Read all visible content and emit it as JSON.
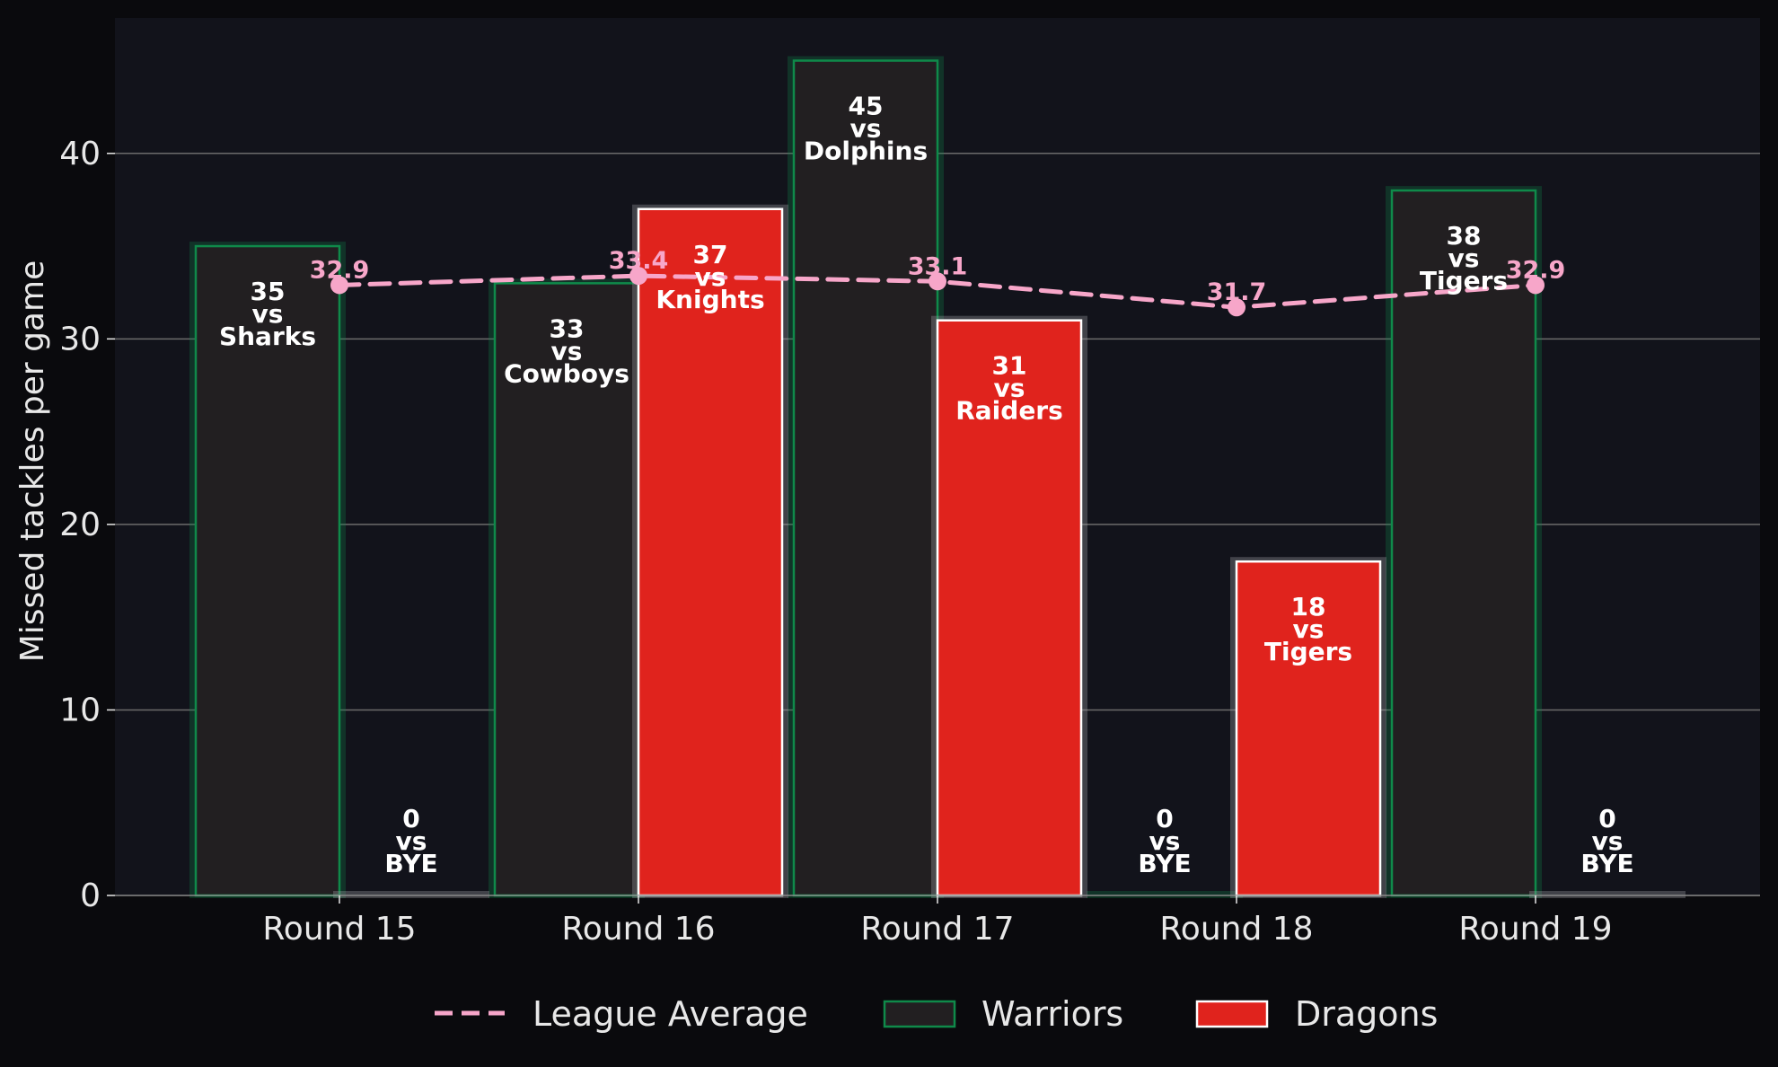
{
  "chart_data": {
    "type": "bar",
    "title": "",
    "xlabel": "",
    "ylabel": "Missed tackles per game",
    "ylim": [
      0,
      47.3
    ],
    "yticks": [
      0,
      10,
      20,
      30,
      40
    ],
    "grid": "horizontal",
    "legend_position": "bottom-center",
    "categories": [
      "Round 15",
      "Round 16",
      "Round 17",
      "Round 18",
      "Round 19"
    ],
    "series": [
      {
        "name": "Warriors",
        "type": "bar",
        "values": [
          35,
          33,
          45,
          0,
          38
        ],
        "opponents": [
          "Sharks",
          "Cowboys",
          "Dolphins",
          "BYE",
          "Tigers"
        ],
        "color": "#221f21",
        "edge_color": "#0f8a4a"
      },
      {
        "name": "Dragons",
        "type": "bar",
        "values": [
          0,
          37,
          31,
          18,
          0
        ],
        "opponents": [
          "BYE",
          "Knights",
          "Raiders",
          "Tigers",
          "BYE"
        ],
        "color": "#e0231d",
        "edge_color": "#ffffff"
      },
      {
        "name": "League Average",
        "type": "line",
        "values": [
          32.9,
          33.4,
          33.1,
          31.7,
          32.9
        ],
        "value_labels": [
          "32.9",
          "33.4",
          "33.1",
          "31.7",
          "32.9"
        ],
        "color": "#f7a6c9",
        "style": "dashed"
      }
    ],
    "versus_word": "vs",
    "legend_order": [
      "League Average",
      "Warriors",
      "Dragons"
    ]
  },
  "colors": {
    "page_background": "#0a0a0d",
    "plot_background": "#12131b",
    "grid": "#6b6b6b",
    "text": "#e8e8e8"
  }
}
